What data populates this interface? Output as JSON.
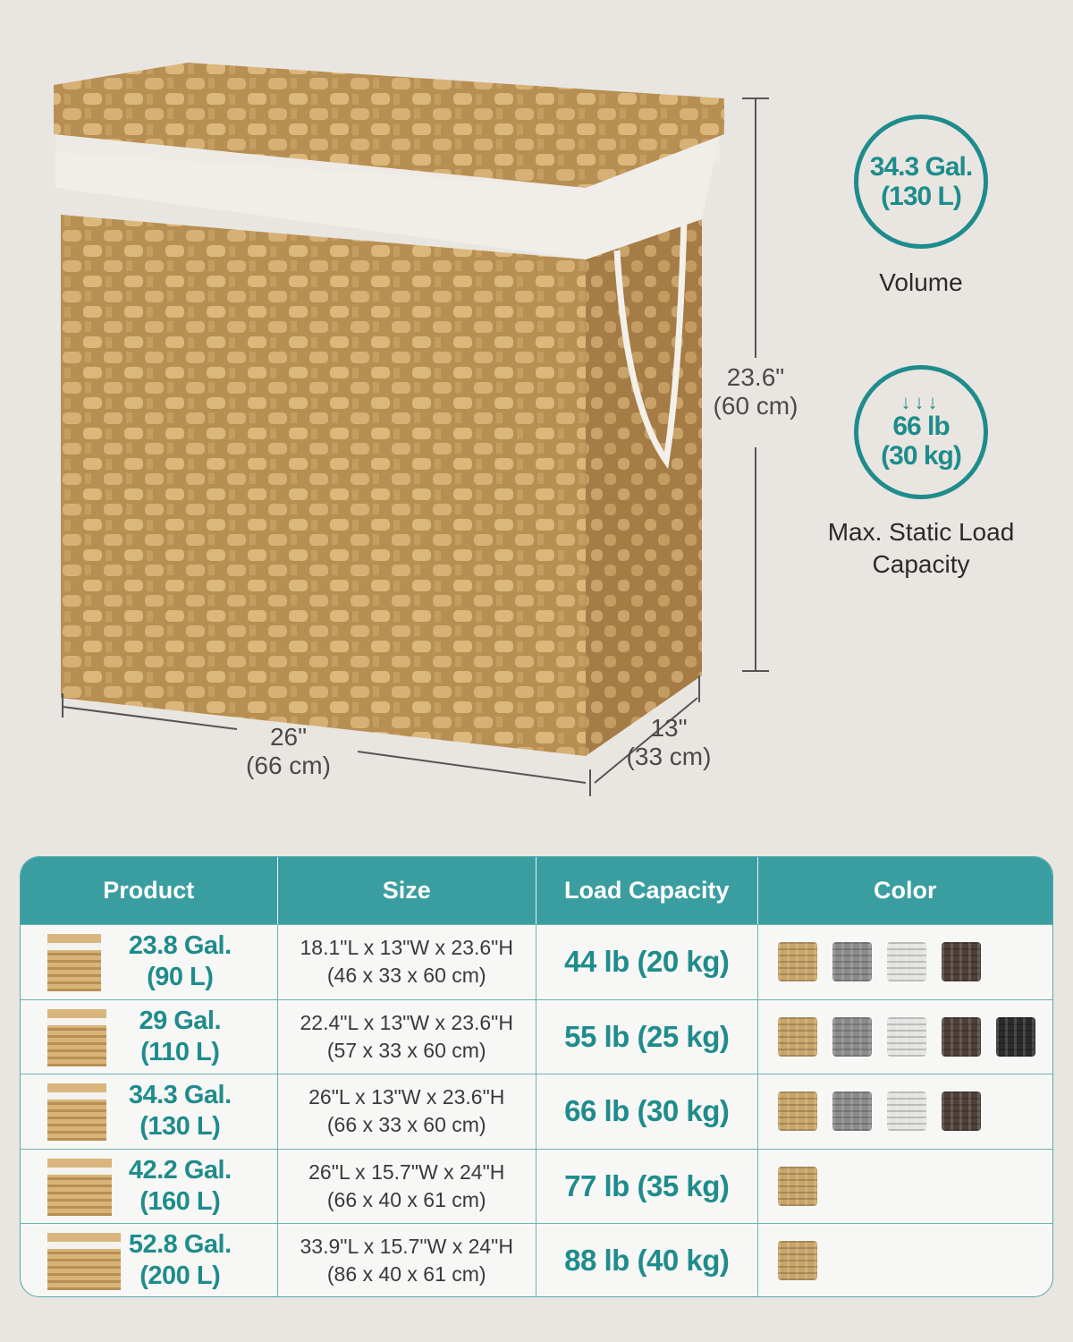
{
  "dimensions": {
    "height": [
      "23.6\"",
      "(60 cm)"
    ],
    "length": [
      "26\"",
      "(66 cm)"
    ],
    "width": [
      "13\"",
      "(33 cm)"
    ]
  },
  "features": [
    {
      "icon": "volume-circle",
      "value": [
        "34.3 Gal.",
        "(130 L)"
      ],
      "caption": "Volume"
    },
    {
      "icon": "down-arrows-icon",
      "arrows": "↓↓↓",
      "value": [
        "66 lb",
        "(30 kg)"
      ],
      "caption": [
        "Max. Static Load",
        "Capacity"
      ]
    }
  ],
  "colors": {
    "teal": "#3a9ea0",
    "teal_text": "#1f8c8c",
    "background": "#e9e6e1"
  },
  "table": {
    "headers": [
      "Product",
      "Size",
      "Load Capacity",
      "Color"
    ],
    "swatch_colors": {
      "natural": "#c9a468",
      "gray": "#8b8b8b",
      "white": "#e4e4e2",
      "brown": "#4e4039",
      "black": "#2b2b2b"
    },
    "rows": [
      {
        "volume": [
          "23.8 Gal.",
          "(90 L)"
        ],
        "size": [
          "18.1\"L x 13\"W x 23.6\"H",
          "(46 x 33 x 60 cm)"
        ],
        "load": "44 lb (20 kg)",
        "colors": [
          "natural",
          "gray",
          "white",
          "brown"
        ]
      },
      {
        "volume": [
          "29 Gal.",
          "(110 L)"
        ],
        "size": [
          "22.4\"L x 13\"W x 23.6\"H",
          "(57 x 33 x 60 cm)"
        ],
        "load": "55 lb (25 kg)",
        "colors": [
          "natural",
          "gray",
          "white",
          "brown",
          "black"
        ]
      },
      {
        "volume": [
          "34.3 Gal.",
          "(130 L)"
        ],
        "size": [
          "26\"L x 13\"W x 23.6\"H",
          "(66 x 33 x 60 cm)"
        ],
        "load": "66 lb (30 kg)",
        "colors": [
          "natural",
          "gray",
          "white",
          "brown"
        ]
      },
      {
        "volume": [
          "42.2 Gal.",
          "(160 L)"
        ],
        "size": [
          "26\"L x 15.7\"W x 24\"H",
          "(66 x 40 x 61 cm)"
        ],
        "load": "77 lb (35 kg)",
        "colors": [
          "natural"
        ]
      },
      {
        "volume": [
          "52.8 Gal.",
          "(200 L)"
        ],
        "size": [
          "33.9\"L x 15.7\"W x 24\"H",
          "(86 x 40 x 61 cm)"
        ],
        "load": "88 lb (40 kg)",
        "colors": [
          "natural"
        ]
      }
    ]
  }
}
